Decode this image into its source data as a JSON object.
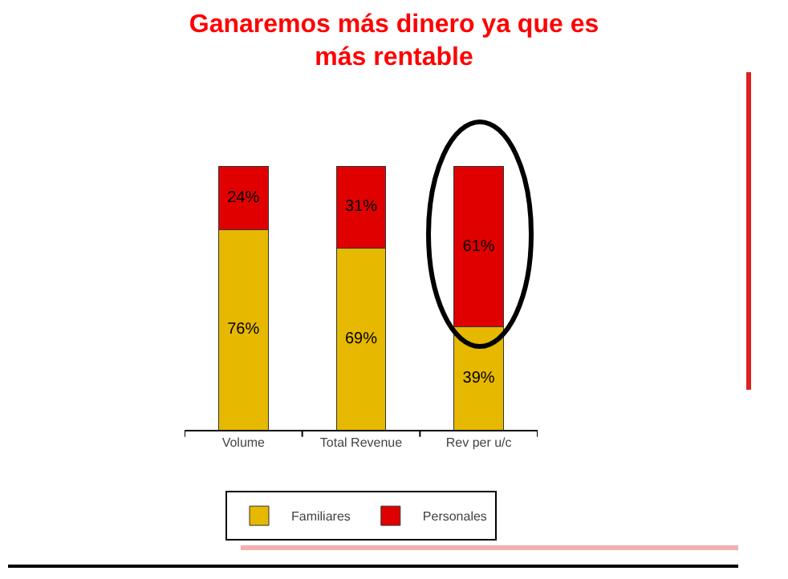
{
  "chart_data": {
    "type": "bar",
    "title": "Ganaremos más dinero ya que es más rentable",
    "categories": [
      "Volume",
      "Total Revenue",
      "Rev per u/c"
    ],
    "stacked": true,
    "series": [
      {
        "name": "Familiares",
        "color": "#e6b800",
        "values": [
          76,
          69,
          39
        ],
        "value_labels": [
          "76%",
          "69%",
          "39%"
        ]
      },
      {
        "name": "Personales",
        "color": "#e00000",
        "values": [
          24,
          31,
          61
        ],
        "value_labels": [
          "24%",
          "31%",
          "61%"
        ]
      }
    ],
    "legend": "bottom",
    "grid": false,
    "tick_labels": "x"
  }
}
